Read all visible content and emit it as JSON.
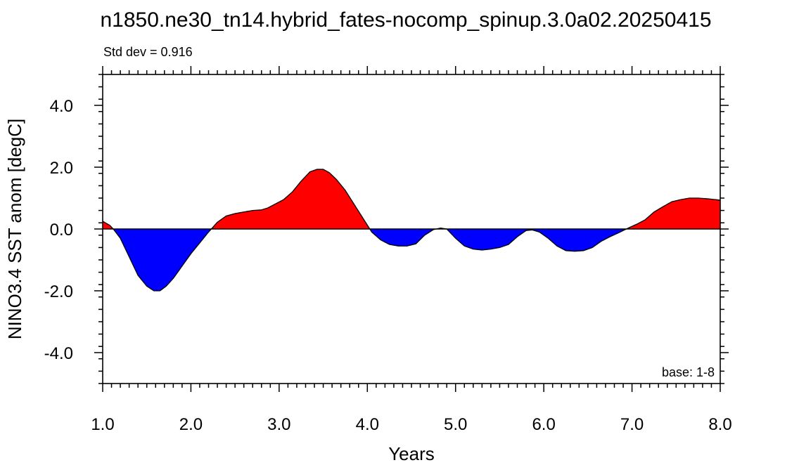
{
  "chart_data": {
    "type": "area",
    "title": "n1850.ne30_tn14.hybrid_fates-nocomp_spinup.3.0a02.20250415",
    "subtitle": "Std dev = 0.916",
    "annotation": "base: 1-8",
    "xlabel": "Years",
    "ylabel": "NINO3.4 SST anom [degC]",
    "xlim": [
      1.0,
      8.0
    ],
    "ylim": [
      -5.0,
      5.0
    ],
    "xticks": [
      1.0,
      2.0,
      3.0,
      4.0,
      5.0,
      6.0,
      7.0,
      8.0
    ],
    "xtick_labels": [
      "1.0",
      "2.0",
      "3.0",
      "4.0",
      "5.0",
      "6.0",
      "7.0",
      "8.0"
    ],
    "yticks": [
      4.0,
      2.0,
      0.0,
      -2.0,
      -4.0
    ],
    "ytick_labels": [
      "4.0",
      "2.0",
      "0.0",
      "-2.0",
      "-4.0"
    ],
    "baseline": 0.0,
    "positive_color": "#ff0000",
    "negative_color": "#0000ff",
    "x": [
      1.0,
      1.08,
      1.12,
      1.2,
      1.3,
      1.4,
      1.5,
      1.58,
      1.65,
      1.72,
      1.8,
      1.9,
      2.0,
      2.1,
      2.2,
      2.3,
      2.4,
      2.5,
      2.6,
      2.7,
      2.8,
      2.87,
      2.95,
      3.05,
      3.15,
      3.25,
      3.35,
      3.43,
      3.5,
      3.57,
      3.65,
      3.75,
      3.85,
      3.95,
      4.05,
      4.15,
      4.25,
      4.35,
      4.45,
      4.55,
      4.65,
      4.75,
      4.83,
      4.9,
      5.0,
      5.1,
      5.2,
      5.3,
      5.4,
      5.5,
      5.6,
      5.7,
      5.8,
      5.87,
      5.95,
      6.05,
      6.15,
      6.25,
      6.35,
      6.45,
      6.55,
      6.65,
      6.75,
      6.85,
      6.95,
      7.05,
      7.15,
      7.25,
      7.35,
      7.45,
      7.55,
      7.65,
      7.75,
      7.85,
      7.95,
      8.0
    ],
    "y": [
      0.25,
      0.12,
      0.0,
      -0.3,
      -0.9,
      -1.5,
      -1.85,
      -2.0,
      -2.0,
      -1.85,
      -1.6,
      -1.2,
      -0.8,
      -0.45,
      -0.1,
      0.22,
      0.42,
      0.5,
      0.55,
      0.6,
      0.62,
      0.68,
      0.8,
      0.95,
      1.2,
      1.55,
      1.85,
      1.93,
      1.93,
      1.82,
      1.6,
      1.25,
      0.8,
      0.35,
      -0.1,
      -0.35,
      -0.5,
      -0.55,
      -0.55,
      -0.48,
      -0.2,
      -0.02,
      0.03,
      0.0,
      -0.3,
      -0.55,
      -0.65,
      -0.68,
      -0.65,
      -0.6,
      -0.5,
      -0.25,
      -0.05,
      -0.03,
      -0.1,
      -0.3,
      -0.55,
      -0.7,
      -0.72,
      -0.7,
      -0.6,
      -0.4,
      -0.25,
      -0.12,
      0.02,
      0.15,
      0.3,
      0.55,
      0.72,
      0.88,
      0.95,
      1.0,
      1.0,
      0.98,
      0.95,
      0.93
    ]
  }
}
